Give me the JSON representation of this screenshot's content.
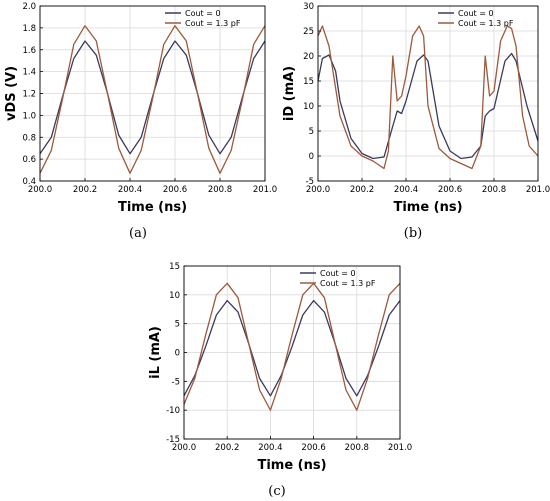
{
  "chart_data": [
    {
      "type": "line",
      "panel_label": "(a)",
      "xlabel": "Time (ns)",
      "ylabel": "vDS (V)",
      "xlim": [
        200.0,
        201.0
      ],
      "ylim": [
        0.4,
        2.0
      ],
      "xticks": [
        200.0,
        200.2,
        200.4,
        200.6,
        200.8,
        201.0
      ],
      "xtick_labels": [
        "200.0",
        "200.2",
        "200.4",
        "200.6",
        "200.8",
        "201.0"
      ],
      "yticks": [
        0.4,
        0.6,
        0.8,
        1.0,
        1.2,
        1.4,
        1.6,
        1.8,
        2.0
      ],
      "ytick_labels": [
        "0.4",
        "0.6",
        "0.8",
        "1.0",
        "1.2",
        "1.4",
        "1.6",
        "1.8",
        "2.0"
      ],
      "grid": true,
      "legend_position": "top-right",
      "series": [
        {
          "name": "Cout = 0",
          "color": "#3a3a5c",
          "x": [
            200.0,
            200.05,
            200.1,
            200.15,
            200.2,
            200.25,
            200.3,
            200.35,
            200.4,
            200.45,
            200.5,
            200.55,
            200.6,
            200.65,
            200.7,
            200.75,
            200.8,
            200.85,
            200.9,
            200.95,
            201.0
          ],
          "y": [
            0.65,
            0.8,
            1.17,
            1.52,
            1.68,
            1.55,
            1.2,
            0.82,
            0.65,
            0.8,
            1.17,
            1.52,
            1.68,
            1.55,
            1.2,
            0.82,
            0.65,
            0.8,
            1.17,
            1.52,
            1.68
          ]
        },
        {
          "name": "Cout = 1.3 pF",
          "color": "#9c5a3c",
          "x": [
            200.0,
            200.05,
            200.1,
            200.15,
            200.2,
            200.25,
            200.3,
            200.35,
            200.4,
            200.45,
            200.5,
            200.55,
            200.6,
            200.65,
            200.7,
            200.75,
            200.8,
            200.85,
            200.9,
            200.95,
            201.0
          ],
          "y": [
            0.47,
            0.68,
            1.15,
            1.65,
            1.82,
            1.68,
            1.2,
            0.7,
            0.47,
            0.68,
            1.15,
            1.65,
            1.82,
            1.68,
            1.2,
            0.7,
            0.47,
            0.68,
            1.15,
            1.65,
            1.82
          ]
        }
      ]
    },
    {
      "type": "line",
      "panel_label": "(b)",
      "xlabel": "Time (ns)",
      "ylabel": "iD (mA)",
      "xlim": [
        200.0,
        201.0
      ],
      "ylim": [
        -5,
        30
      ],
      "xticks": [
        200.0,
        200.2,
        200.4,
        200.6,
        200.8,
        201.0
      ],
      "xtick_labels": [
        "200.0",
        "200.2",
        "200.4",
        "200.6",
        "200.8",
        "201.0"
      ],
      "yticks": [
        -5,
        0,
        5,
        10,
        15,
        20,
        25,
        30
      ],
      "ytick_labels": [
        "-5",
        "0",
        "5",
        "10",
        "15",
        "20",
        "25",
        "30"
      ],
      "grid": true,
      "legend_position": "top-right",
      "series": [
        {
          "name": "Cout = 0",
          "color": "#3a3a5c",
          "x": [
            200.0,
            200.02,
            200.05,
            200.08,
            200.1,
            200.15,
            200.2,
            200.25,
            200.3,
            200.34,
            200.36,
            200.38,
            200.4,
            200.45,
            200.48,
            200.5,
            200.55,
            200.6,
            200.65,
            200.7,
            200.74,
            200.76,
            200.78,
            200.8,
            200.85,
            200.88,
            200.9,
            200.95,
            201.0
          ],
          "y": [
            15,
            19.5,
            20.2,
            17,
            11,
            3.5,
            0.5,
            -0.5,
            -0.2,
            6,
            9,
            8.5,
            11,
            19,
            20.2,
            19,
            6,
            1,
            -0.5,
            -0.2,
            2,
            8,
            9,
            9.5,
            19,
            20.5,
            19,
            10,
            3
          ]
        },
        {
          "name": "Cout = 1.3 pF",
          "color": "#9c5a3c",
          "x": [
            200.0,
            200.02,
            200.05,
            200.1,
            200.15,
            200.2,
            200.25,
            200.3,
            200.32,
            200.34,
            200.36,
            200.38,
            200.4,
            200.43,
            200.46,
            200.48,
            200.5,
            200.55,
            200.6,
            200.65,
            200.7,
            200.74,
            200.76,
            200.78,
            200.8,
            200.83,
            200.86,
            200.88,
            200.9,
            200.93,
            200.96,
            201.0
          ],
          "y": [
            24,
            26,
            22,
            8,
            2,
            0,
            -1,
            -2.5,
            1,
            20,
            11,
            12,
            16,
            24,
            26,
            24,
            10,
            1.5,
            -0.5,
            -1.5,
            -2.5,
            2,
            20,
            12,
            13,
            23,
            26,
            25.5,
            22,
            8,
            2,
            0
          ]
        }
      ]
    },
    {
      "type": "line",
      "panel_label": "(c)",
      "xlabel": "Time (ns)",
      "ylabel": "iL (mA)",
      "xlim": [
        200.0,
        201.0
      ],
      "ylim": [
        -15,
        15
      ],
      "xticks": [
        200.0,
        200.2,
        200.4,
        200.6,
        200.8,
        201.0
      ],
      "xtick_labels": [
        "200.0",
        "200.2",
        "200.4",
        "200.6",
        "200.8",
        "201.0"
      ],
      "yticks": [
        -15,
        -10,
        -5,
        0,
        5,
        10,
        15
      ],
      "ytick_labels": [
        "-15",
        "-10",
        "-5",
        "0",
        "5",
        "10",
        "15"
      ],
      "grid": true,
      "legend_position": "top-right",
      "series": [
        {
          "name": "Cout = 0",
          "color": "#3a3a5c",
          "x": [
            200.0,
            200.05,
            200.1,
            200.15,
            200.2,
            200.25,
            200.3,
            200.35,
            200.4,
            200.45,
            200.5,
            200.55,
            200.6,
            200.65,
            200.7,
            200.75,
            200.8,
            200.85,
            200.9,
            200.95,
            201.0
          ],
          "y": [
            -7.5,
            -4,
            1,
            6.5,
            9,
            7,
            1.5,
            -4.5,
            -7.5,
            -4,
            1,
            6.5,
            9,
            7,
            1.5,
            -4.5,
            -7.5,
            -4,
            1,
            6.5,
            9
          ]
        },
        {
          "name": "Cout = 1.3 pF",
          "color": "#9c5a3c",
          "x": [
            200.0,
            200.05,
            200.1,
            200.15,
            200.2,
            200.25,
            200.3,
            200.35,
            200.4,
            200.45,
            200.5,
            200.55,
            200.6,
            200.65,
            200.7,
            200.75,
            200.8,
            200.85,
            200.9,
            200.95,
            201.0
          ],
          "y": [
            -9,
            -4.5,
            3,
            10,
            12,
            9.5,
            1.5,
            -6.5,
            -10,
            -4.5,
            3,
            10,
            12,
            9.5,
            1.5,
            -6.5,
            -10,
            -4.5,
            3,
            10,
            12
          ]
        }
      ]
    }
  ]
}
